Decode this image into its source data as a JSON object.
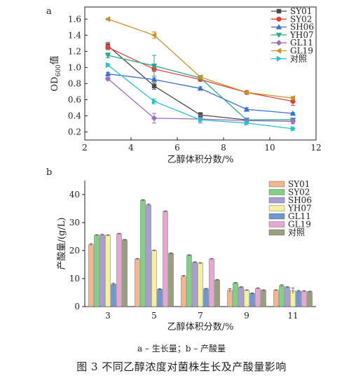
{
  "caption": {
    "subcaption": "a – 生长量；b – 产酸量",
    "main": "图 3   不同乙醇浓度对菌株生长及产酸量影响"
  },
  "chart_data": [
    {
      "panel": "a",
      "type": "line",
      "xlabel": "乙醇体积分数/%",
      "ylabel": "OD600值",
      "ylabel_parts": {
        "pre": "OD",
        "sub": "600",
        "post": "值"
      },
      "xlim": [
        2,
        12
      ],
      "ylim": [
        0.1,
        1.75
      ],
      "xticks": [
        2,
        4,
        6,
        8,
        10,
        12
      ],
      "yticks": [
        0.2,
        0.4,
        0.6,
        0.8,
        1.0,
        1.2,
        1.4,
        1.6
      ],
      "ytick_labels": [
        "0.2",
        "0.4",
        "0.6",
        "0.8",
        "1.0",
        "1.2",
        "1.4",
        "1.6"
      ],
      "grid": false,
      "legend": "top-right",
      "x": [
        3,
        5,
        7,
        9,
        11
      ],
      "series": [
        {
          "name": "SY01",
          "color": "#4a4a4a",
          "marker": "square",
          "values": [
            1.27,
            0.77,
            0.41,
            0.35,
            0.35
          ],
          "err": [
            0.04,
            0.04,
            0.03,
            0.01,
            0.01
          ]
        },
        {
          "name": "SY02",
          "color": "#e0403a",
          "marker": "circle",
          "values": [
            1.25,
            0.98,
            0.85,
            0.69,
            0.58
          ],
          "err": [
            0.03,
            0.03,
            0.02,
            0.01,
            0.05
          ]
        },
        {
          "name": "SH06",
          "color": "#3a6fd0",
          "marker": "triangle",
          "values": [
            0.92,
            0.85,
            0.74,
            0.48,
            0.43
          ],
          "err": [
            0.02,
            0.02,
            0.02,
            0.02,
            0.01
          ]
        },
        {
          "name": "YH07",
          "color": "#2fa88a",
          "marker": "tri-down",
          "values": [
            1.15,
            1.02,
            0.87,
            0.35,
            0.35
          ],
          "err": [
            0.03,
            0.13,
            0.02,
            0.02,
            0.01
          ]
        },
        {
          "name": "GL11",
          "color": "#9b6fc0",
          "marker": "diamond",
          "values": [
            0.86,
            0.37,
            0.36,
            0.34,
            0.33
          ],
          "err": [
            0.02,
            0.06,
            0.05,
            0.02,
            0.03
          ]
        },
        {
          "name": "GL19",
          "color": "#c8922a",
          "marker": "tri-left",
          "values": [
            1.6,
            1.4,
            0.88,
            0.69,
            0.62
          ],
          "err": [
            0.01,
            0.04,
            0.02,
            0.01,
            0.02
          ]
        },
        {
          "name": "对照",
          "color": "#2cc0cf",
          "marker": "tri-right",
          "values": [
            1.03,
            0.58,
            0.35,
            0.31,
            0.24
          ],
          "err": [
            0.02,
            0.03,
            0.02,
            0.02,
            0.02
          ]
        }
      ]
    },
    {
      "panel": "b",
      "type": "bar",
      "xlabel": "乙醇体积分数/%",
      "ylabel": "产酸量/(g/L)",
      "categories": [
        "3",
        "5",
        "7",
        "9",
        "11"
      ],
      "ylim": [
        0,
        45
      ],
      "yticks": [
        0,
        10,
        20,
        30,
        40
      ],
      "grid": false,
      "legend": "top-right",
      "series": [
        {
          "name": "SY01",
          "color": "#f3b68d",
          "values": [
            22.2,
            17.0,
            10.8,
            5.8,
            5.8
          ],
          "err": [
            0.3,
            0.2,
            0.3,
            0.6,
            0.2
          ]
        },
        {
          "name": "SY02",
          "color": "#84cf86",
          "values": [
            25.5,
            38.0,
            18.3,
            8.4,
            7.5
          ],
          "err": [
            0.2,
            0.2,
            0.2,
            0.2,
            0.3
          ]
        },
        {
          "name": "SH06",
          "color": "#a89ed0",
          "values": [
            25.6,
            36.3,
            15.8,
            6.9,
            6.9
          ],
          "err": [
            0.2,
            0.3,
            0.2,
            0.2,
            0.2
          ]
        },
        {
          "name": "YH07",
          "color": "#f5f0a0",
          "values": [
            25.4,
            20.0,
            15.5,
            5.8,
            5.7
          ],
          "err": [
            0.2,
            0.2,
            0.2,
            0.2,
            1.0
          ]
        },
        {
          "name": "GL11",
          "color": "#6f97d2",
          "values": [
            8.0,
            6.2,
            6.3,
            4.7,
            5.5
          ],
          "err": [
            0.4,
            0.2,
            0.2,
            0.2,
            0.3
          ]
        },
        {
          "name": "GL19",
          "color": "#e6a8d3",
          "values": [
            26.0,
            34.0,
            17.0,
            6.5,
            5.5
          ],
          "err": [
            0.2,
            0.2,
            0.2,
            0.2,
            0.2
          ]
        },
        {
          "name": "对照",
          "color": "#9a9f7f",
          "values": [
            23.8,
            19.0,
            9.5,
            5.8,
            5.3
          ],
          "err": [
            0.2,
            0.2,
            0.2,
            0.2,
            0.2
          ]
        }
      ]
    }
  ]
}
